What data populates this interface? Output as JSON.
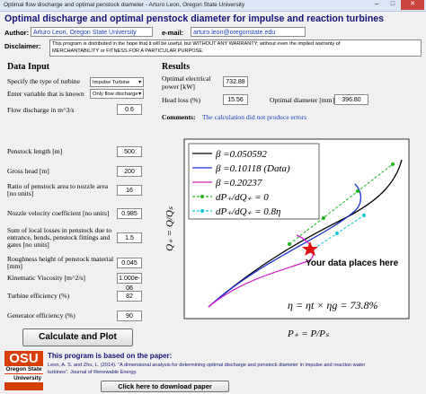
{
  "window": {
    "title": "Optimal flow discharge and optimal penstock diameter - Arturo Leon, Oregon State University"
  },
  "header": {
    "title": "Optimal discharge and optimal penstock diameter for impulse and reaction turbines",
    "author_label": "Author:",
    "author": "Arturo Leon, Oregon State University",
    "email_label": "e-mail:",
    "email": "arturo.leon@oregonstate.edu",
    "disclaimer_label": "Disclaimer:",
    "disclaimer": [
      "This program is distributed in the hope that it will be useful, but WITHOUT ANY WARRANTY; without even the implied warranty of",
      "MERCHANTABILITY or FITNESS FOR A PARTICULAR PURPOSE."
    ]
  },
  "data_input": {
    "title": "Data Input",
    "turbine_type": {
      "label": "Specify the type of turbine",
      "value": "Impulse Turbine"
    },
    "known_variable": {
      "label": "Enter variable that is known",
      "value": "Only flow discharge"
    },
    "flow_discharge": {
      "label": "Flow discharge in m^3/s",
      "value": "0.6"
    },
    "fields": [
      {
        "label": [
          "Penstock length [m]"
        ],
        "value": "500"
      },
      {
        "label": [
          "Gross head [m]"
        ],
        "value": "200"
      },
      {
        "label": [
          "Ratio of penstock area to nozzle area",
          "[no units]"
        ],
        "value": "16"
      },
      {
        "label": [
          "Nozzle velocity coefficient [no units]"
        ],
        "value": "0.985"
      },
      {
        "label": [
          "Sum of local losses in penstock due to",
          "entrance, bends, penstock fittings and",
          "gates [no units]"
        ],
        "value": "1.5"
      },
      {
        "label": [
          "Roughness height of penstock material",
          "[mm]"
        ],
        "value": "0.045"
      },
      {
        "label": [
          "Kinematic Viscosity [m^2/s]"
        ],
        "value": "1.000e-06"
      },
      {
        "label": [
          "Turbine efficiency (%)"
        ],
        "value": "82"
      },
      {
        "label": [
          "Generator efficiency (%)"
        ],
        "value": "90"
      }
    ],
    "button": "Calculate and Plot"
  },
  "results": {
    "title": "Results",
    "power": {
      "label": [
        "Optimal electrical",
        "power [kW]"
      ],
      "value": "732.88"
    },
    "head_loss": {
      "label": "Head loss (%)",
      "value": "15.56"
    },
    "diameter": {
      "label": "Optimal diameter [mm]",
      "value": "396.80"
    },
    "comments_label": "Comments:",
    "comments": "The calculation did not produce errors"
  },
  "plot": {
    "legend": [
      "β =0.050592",
      "β =0.10118 (Data)",
      "β =0.20237",
      "dP₊/dQ₊ = 0",
      "dP₊/dQ₊ = 0.8η"
    ],
    "xlabel": "P₊ = P/Pₛ",
    "ylabel": "Q₊ = Q/Qₛ",
    "annotation": "Your data places here",
    "efficiency": "η = ηt × ηg = 73.8%"
  },
  "footer": {
    "logo": [
      "OSU",
      "Oregon State",
      "University"
    ],
    "based_on": "This program is based on the paper:",
    "citation": [
      "Leon, A. S. and Zhu, L. (2014). \"A dimensional analysis for determining optimal discharge and penstock diameter in impulse and reaction water",
      "turbines\". Journal of Renewable Energy."
    ],
    "button": "Click here to download paper"
  }
}
